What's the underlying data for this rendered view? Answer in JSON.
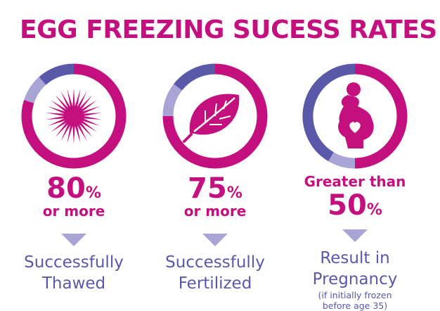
{
  "title": "EGG FREEZING SUCESS RATES",
  "colors": {
    "magenta": "#c4107f",
    "light_purple": "#a8a4d6",
    "dark_purple": "#5a58a8"
  },
  "chart_data": {
    "type": "pie",
    "title": "EGG FREEZING SUCESS RATES",
    "items": [
      {
        "icon": "starburst-icon",
        "value": 80,
        "big": "80",
        "unit": "%",
        "sub": "or more",
        "label_lines": [
          "Successfully",
          "Thawed"
        ]
      },
      {
        "icon": "leaf-icon",
        "value": 75,
        "big": "75",
        "unit": "%",
        "sub": "or more",
        "label_lines": [
          "Successfully",
          "Fertilized"
        ]
      },
      {
        "icon": "pregnant-woman-icon",
        "value": 50,
        "pre": "Greater than",
        "big": "50",
        "unit": "%",
        "label_lines": [
          "Result in Pregnancy"
        ],
        "note_lines": [
          "(if initially frozen",
          "before age 35)"
        ]
      }
    ]
  }
}
